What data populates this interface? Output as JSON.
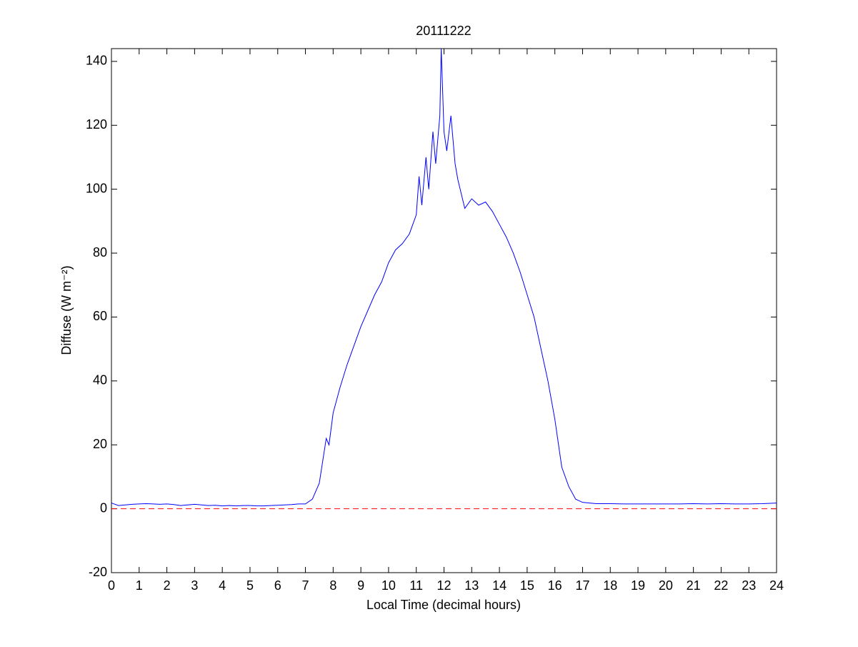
{
  "chart_data": {
    "type": "line",
    "title": "20111222",
    "xlabel": "Local Time (decimal hours)",
    "ylabel": "Diffuse (W m⁻²)",
    "x": [
      0,
      0.25,
      0.5,
      0.75,
      1,
      1.25,
      1.5,
      1.75,
      2,
      2.25,
      2.5,
      2.75,
      3,
      3.25,
      3.5,
      3.75,
      4,
      4.25,
      4.5,
      4.75,
      5,
      5.25,
      5.5,
      5.75,
      6,
      6.25,
      6.5,
      6.75,
      7,
      7.25,
      7.5,
      7.75,
      7.85,
      8,
      8.25,
      8.5,
      8.75,
      9,
      9.25,
      9.5,
      9.75,
      10,
      10.25,
      10.5,
      10.75,
      11,
      11.1,
      11.2,
      11.35,
      11.45,
      11.6,
      11.7,
      11.85,
      11.9,
      12,
      12.1,
      12.25,
      12.4,
      12.5,
      12.75,
      13,
      13.25,
      13.5,
      13.75,
      14,
      14.25,
      14.5,
      14.75,
      15,
      15.25,
      15.5,
      15.75,
      16,
      16.25,
      16.5,
      16.75,
      17,
      17.25,
      17.5,
      18,
      18.5,
      19,
      19.5,
      20,
      20.5,
      21,
      21.5,
      22,
      22.5,
      23,
      23.5,
      24
    ],
    "series": [
      {
        "name": "Diffuse",
        "color": "#0000ff",
        "values": [
          1.8,
          1.0,
          1.2,
          1.4,
          1.5,
          1.6,
          1.5,
          1.4,
          1.5,
          1.3,
          1.0,
          1.2,
          1.4,
          1.2,
          1.0,
          1.1,
          0.9,
          1.0,
          0.9,
          1.0,
          1.0,
          0.9,
          0.9,
          1.0,
          1.1,
          1.2,
          1.3,
          1.5,
          1.5,
          3,
          8,
          22,
          20,
          30,
          38,
          45,
          51,
          57,
          62,
          67,
          71,
          77,
          81,
          83,
          86,
          92,
          104,
          95,
          110,
          100,
          118,
          108,
          123,
          144,
          118,
          112,
          123,
          108,
          103,
          94,
          97,
          95,
          96,
          93,
          89,
          85,
          80,
          74,
          67,
          60,
          50,
          40,
          28,
          13,
          7,
          3,
          2,
          1.8,
          1.6,
          1.6,
          1.5,
          1.5,
          1.5,
          1.5,
          1.5,
          1.6,
          1.5,
          1.6,
          1.5,
          1.5,
          1.6,
          1.8
        ]
      }
    ],
    "reference_line": {
      "value": 0,
      "color": "#ff0000"
    },
    "xlim": [
      0,
      24
    ],
    "xticks": [
      0,
      1,
      2,
      3,
      4,
      5,
      6,
      7,
      8,
      9,
      10,
      11,
      12,
      13,
      14,
      15,
      16,
      17,
      18,
      19,
      20,
      21,
      22,
      23,
      24
    ],
    "ylim": [
      -20,
      144
    ],
    "yticks": [
      -20,
      0,
      20,
      40,
      60,
      80,
      100,
      120,
      140
    ]
  }
}
